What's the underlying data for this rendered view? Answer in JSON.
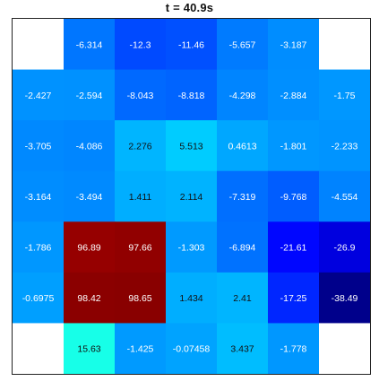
{
  "chart_data": {
    "type": "heatmap",
    "title": "t = 40.9s",
    "rows": 7,
    "cols": 7,
    "colormap": "jet",
    "color_range": [
      -40,
      100
    ],
    "missing_color": "#ffffff",
    "values": [
      [
        null,
        -6.314,
        -12.3,
        -11.46,
        -5.657,
        -3.187,
        null
      ],
      [
        -2.427,
        -2.594,
        -8.043,
        -8.818,
        -4.298,
        -2.884,
        -1.75
      ],
      [
        -3.705,
        -4.086,
        2.276,
        5.513,
        0.4613,
        -1.801,
        -2.233
      ],
      [
        -3.164,
        -3.494,
        1.411,
        2.114,
        -7.319,
        -9.768,
        -4.554
      ],
      [
        -1.786,
        96.89,
        97.66,
        -1.303,
        -6.894,
        -21.61,
        -26.9
      ],
      [
        -0.6975,
        98.42,
        98.65,
        1.434,
        2.41,
        -17.25,
        -38.49
      ],
      [
        null,
        15.63,
        -1.425,
        -0.07458,
        3.437,
        -1.778,
        null
      ]
    ],
    "labels": [
      [
        "",
        "-6.314",
        "-12.3",
        "-11.46",
        "-5.657",
        "-3.187",
        ""
      ],
      [
        "-2.427",
        "-2.594",
        "-8.043",
        "-8.818",
        "-4.298",
        "-2.884",
        "-1.75"
      ],
      [
        "-3.705",
        "-4.086",
        "2.276",
        "5.513",
        "0.4613",
        "-1.801",
        "-2.233"
      ],
      [
        "-3.164",
        "-3.494",
        "1.411",
        "2.114",
        "-7.319",
        "-9.768",
        "-4.554"
      ],
      [
        "-1.786",
        "96.89",
        "97.66",
        "-1.303",
        "-6.894",
        "-21.61",
        "-26.9"
      ],
      [
        "-0.6975",
        "98.42",
        "98.65",
        "1.434",
        "2.41",
        "-17.25",
        "-38.49"
      ],
      [
        "",
        "15.63",
        "-1.425",
        "-0.07458",
        "3.437",
        "-1.778",
        ""
      ]
    ],
    "grid": false,
    "legend": "none"
  }
}
